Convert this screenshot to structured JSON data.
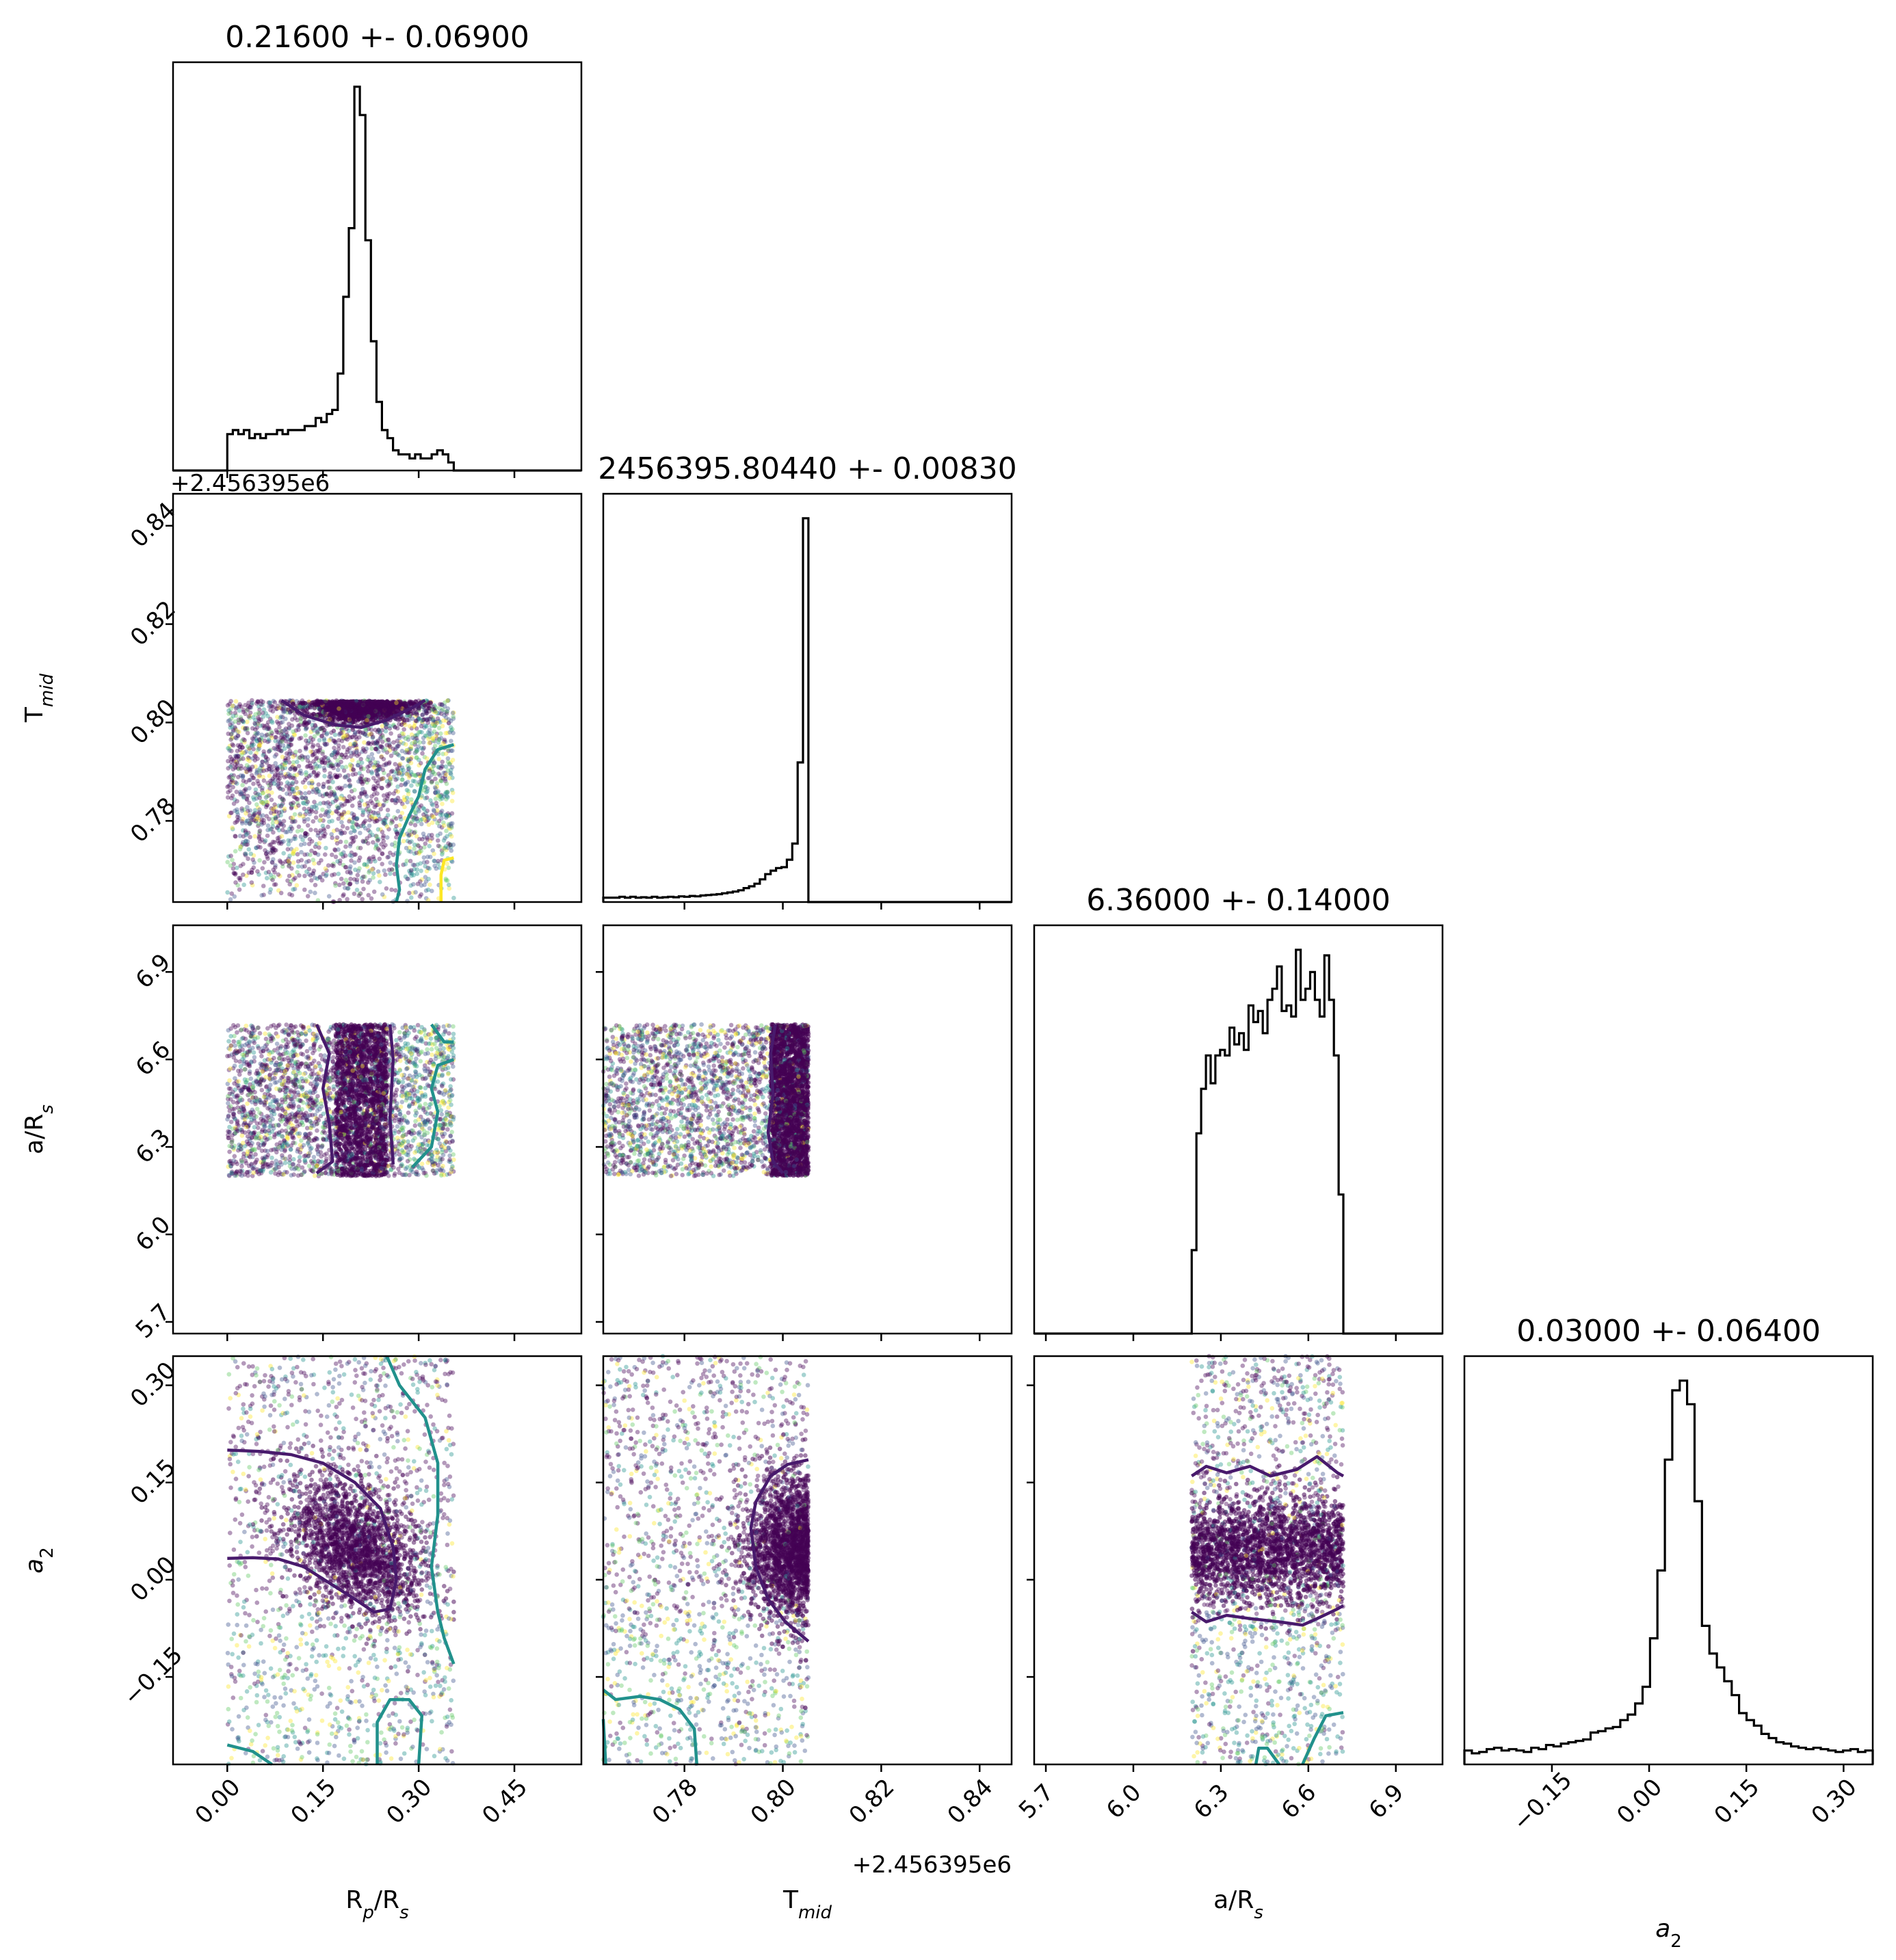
{
  "chart_data": {
    "type": "scatter",
    "kind": "corner-plot",
    "parameters": [
      {
        "key": "rp",
        "label": "R_p/R_s",
        "label_main": "R",
        "label_sub": "p",
        "label_tail": "/R",
        "label_sub2": "s",
        "title": "0.21600 +- 0.06900",
        "range": [
          -0.085,
          0.555
        ],
        "ticks": [
          "0.00",
          "0.15",
          "0.30",
          "0.45"
        ],
        "tick_values": [
          0.0,
          0.15,
          0.3,
          0.45
        ]
      },
      {
        "key": "tmid",
        "label": "T_mid",
        "label_main": "T",
        "label_sub": "mid",
        "title": "2456395.80440 +- 0.00830",
        "range": [
          0.7635,
          0.8465
        ],
        "ticks": [
          "0.78",
          "0.80",
          "0.82",
          "0.84"
        ],
        "tick_values": [
          0.78,
          0.8,
          0.82,
          0.84
        ],
        "offset": "+2.456395e6"
      },
      {
        "key": "ars",
        "label": "a/R_s",
        "label_main": "a/R",
        "label_sub": "s",
        "title": "6.36000 +- 0.14000",
        "range": [
          5.66,
          7.06
        ],
        "ticks": [
          "5.7",
          "6.0",
          "6.3",
          "6.6",
          "6.9"
        ],
        "tick_values": [
          5.7,
          6.0,
          6.3,
          6.6,
          6.9
        ]
      },
      {
        "key": "a2",
        "label": "a_2",
        "label_main": "a",
        "label_sub": "2",
        "title": "0.03000 +- 0.06400",
        "range": [
          -0.285,
          0.345
        ],
        "ticks": [
          "−0.15",
          "0.00",
          "0.15",
          "0.30"
        ],
        "tick_values": [
          -0.15,
          0.0,
          0.15,
          0.3
        ]
      }
    ],
    "histograms": {
      "rp": {
        "edges": [
          0.0,
          0.355
        ],
        "counts": [
          9,
          10,
          9,
          10,
          8,
          9,
          8,
          9,
          9,
          10,
          9,
          10,
          10,
          10,
          11,
          11,
          13,
          12,
          14,
          15,
          24,
          43,
          60,
          95,
          88,
          57,
          32,
          17,
          10,
          8,
          5,
          4,
          4,
          3,
          4,
          3,
          3,
          4,
          5,
          4,
          2
        ]
      },
      "tmid": {
        "edges": [
          0.7635,
          0.8052
        ],
        "counts": [
          1,
          1,
          1,
          1.2,
          1,
          1.2,
          1,
          1.1,
          1,
          1.2,
          1,
          1.1,
          1.2,
          1.1,
          1.3,
          1.2,
          1.4,
          1.3,
          1.5,
          1.6,
          1.7,
          1.8,
          2,
          2.2,
          2.4,
          2.7,
          3.2,
          3.6,
          4.2,
          5.2,
          6.4,
          7.2,
          7.8,
          8,
          9.7,
          13.4,
          32,
          88
        ]
      },
      "ars": {
        "edges": [
          6.2,
          6.72
        ],
        "counts": [
          15,
          36,
          44,
          50,
          45,
          50,
          51,
          50,
          55,
          52,
          54,
          51,
          59,
          56,
          58,
          54,
          60,
          62,
          66,
          58,
          59,
          57,
          69,
          60,
          62,
          65,
          60,
          57,
          68,
          60,
          50,
          25
        ]
      },
      "a2": {
        "edges": [
          -0.285,
          0.345
        ],
        "counts": [
          1,
          0.8,
          0.9,
          1.1,
          1.2,
          1.0,
          1.1,
          1.0,
          0.9,
          1.2,
          1.1,
          1.4,
          1.3,
          1.5,
          1.6,
          1.7,
          1.8,
          2.3,
          2.4,
          2.6,
          2.7,
          3.2,
          3.6,
          4.4,
          5.6,
          9.1,
          14,
          22,
          27,
          27.7,
          26,
          19,
          10,
          8,
          7,
          6,
          5,
          3.7,
          3.2,
          2.8,
          2.2,
          1.9,
          1.6,
          1.5,
          1.3,
          1.2,
          1.1,
          1.2,
          1.1,
          1.0,
          0.9,
          1.0,
          1.1,
          0.9,
          1.0
        ]
      }
    },
    "scatter_regions": {
      "rp_tmid": {
        "x": [
          0.0,
          0.355
        ],
        "y": [
          0.7635,
          0.8045
        ],
        "dense_center": [
          0.21,
          0.8025
        ]
      },
      "rp_ars": {
        "x": [
          0.0,
          0.355
        ],
        "y": [
          6.2,
          6.72
        ],
        "dense_band_x": [
          0.17,
          0.25
        ]
      },
      "tmid_ars": {
        "x": [
          0.7635,
          0.8052
        ],
        "y": [
          6.2,
          6.72
        ],
        "dense_band_x": [
          0.797,
          0.8052
        ]
      },
      "rp_a2": {
        "x": [
          0.0,
          0.355
        ],
        "y": [
          -0.285,
          0.345
        ],
        "dense_center": [
          0.21,
          0.04
        ]
      },
      "tmid_a2": {
        "x": [
          0.7635,
          0.8052
        ],
        "y": [
          -0.285,
          0.345
        ],
        "dense_center": [
          0.8035,
          0.04
        ]
      },
      "ars_a2": {
        "x": [
          6.2,
          6.72
        ],
        "y": [
          -0.285,
          0.345
        ],
        "dense_band_y": [
          0.0,
          0.12
        ]
      }
    },
    "point_colors": [
      "#440154",
      "#3b528b",
      "#21918c",
      "#5ec962",
      "#fde725"
    ],
    "contour_colors": {
      "inner": "#481a6c",
      "outer": "#21918c",
      "outermost": "#fde725"
    },
    "grid": false,
    "legend": "none"
  }
}
